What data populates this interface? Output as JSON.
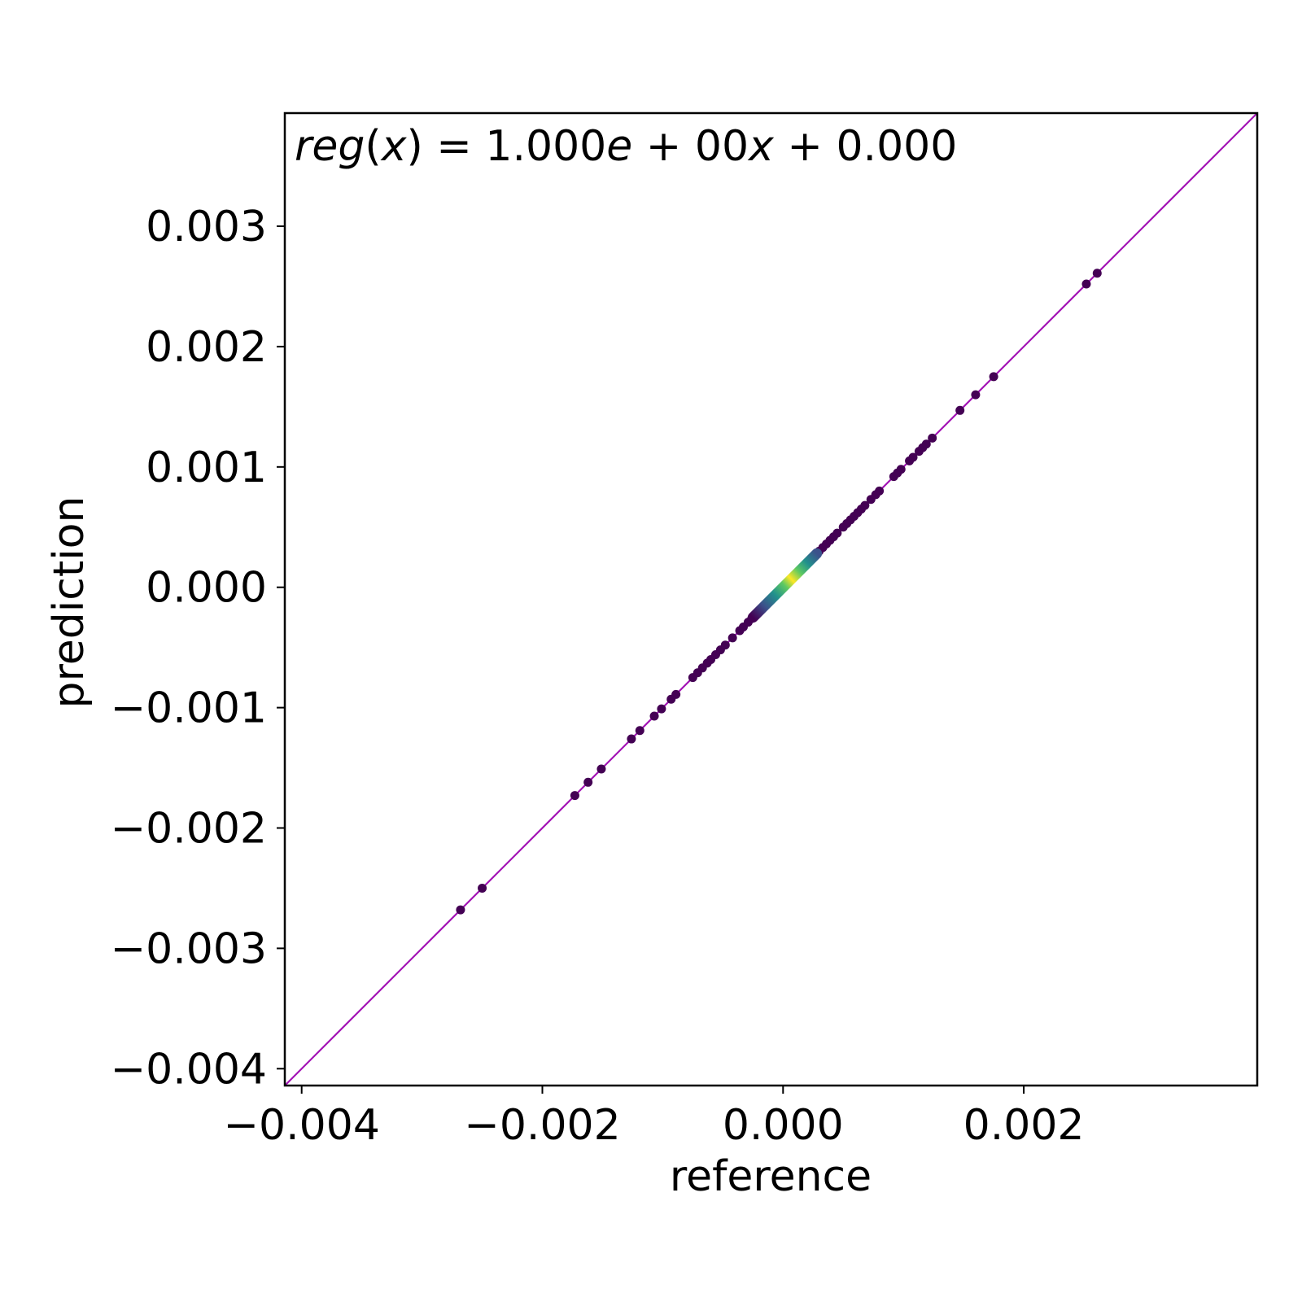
{
  "chart_data": {
    "type": "scatter",
    "title": "",
    "xlabel": "reference",
    "ylabel": "prediction",
    "xlim": [
      -0.00414,
      0.00394
    ],
    "ylim": [
      -0.00414,
      0.00394
    ],
    "xticks": [
      -0.004,
      -0.002,
      0.0,
      0.002
    ],
    "xtick_labels": [
      "−0.004",
      "−0.002",
      "0.000",
      "0.002"
    ],
    "yticks": [
      -0.004,
      -0.003,
      -0.002,
      -0.001,
      0.0,
      0.001,
      0.002,
      0.003
    ],
    "ytick_labels": [
      "−0.004",
      "−0.003",
      "−0.002",
      "−0.001",
      "0.000",
      "0.001",
      "0.002",
      "0.003"
    ],
    "grid": false,
    "annotation": {
      "parts": [
        {
          "text": "reg",
          "italic": true
        },
        {
          "text": "(",
          "italic": false
        },
        {
          "text": "x",
          "italic": true
        },
        {
          "text": ") = 1.000",
          "italic": false
        },
        {
          "text": "e",
          "italic": true
        },
        {
          "text": " + 00",
          "italic": false
        },
        {
          "text": "x",
          "italic": true
        },
        {
          "text": " + 0.000",
          "italic": false
        }
      ],
      "position": "top-left"
    },
    "regression": {
      "slope": 1.0,
      "intercept": 0.0,
      "color": "#a313b5"
    },
    "colormap": "viridis",
    "point_color": "#440154",
    "density_core": {
      "from": -0.00025,
      "to": 0.00028
    },
    "points": [
      -0.00268,
      -0.0025,
      -0.00173,
      -0.00162,
      -0.00151,
      -0.00126,
      -0.00119,
      -0.00107,
      -0.00101,
      -0.00093,
      -0.00089,
      -0.00075,
      -0.00071,
      -0.00067,
      -0.00063,
      -0.0006,
      -0.00056,
      -0.00052,
      -0.00048,
      -0.00042,
      -0.00036,
      -0.00033,
      -0.00029,
      -0.00026,
      -0.00022,
      -0.00018,
      -0.00014,
      -0.0001,
      0.00015,
      0.0002,
      0.00024,
      0.00027,
      0.0003,
      0.00033,
      0.00036,
      0.00039,
      0.00042,
      0.00045,
      0.0005,
      0.00053,
      0.00056,
      0.00059,
      0.00062,
      0.00065,
      0.00068,
      0.00073,
      0.00077,
      0.0008,
      0.00092,
      0.00095,
      0.00098,
      0.00105,
      0.00108,
      0.00113,
      0.00116,
      0.00119,
      0.00124,
      0.00147,
      0.0016,
      0.00175,
      0.00252,
      0.00261
    ]
  }
}
